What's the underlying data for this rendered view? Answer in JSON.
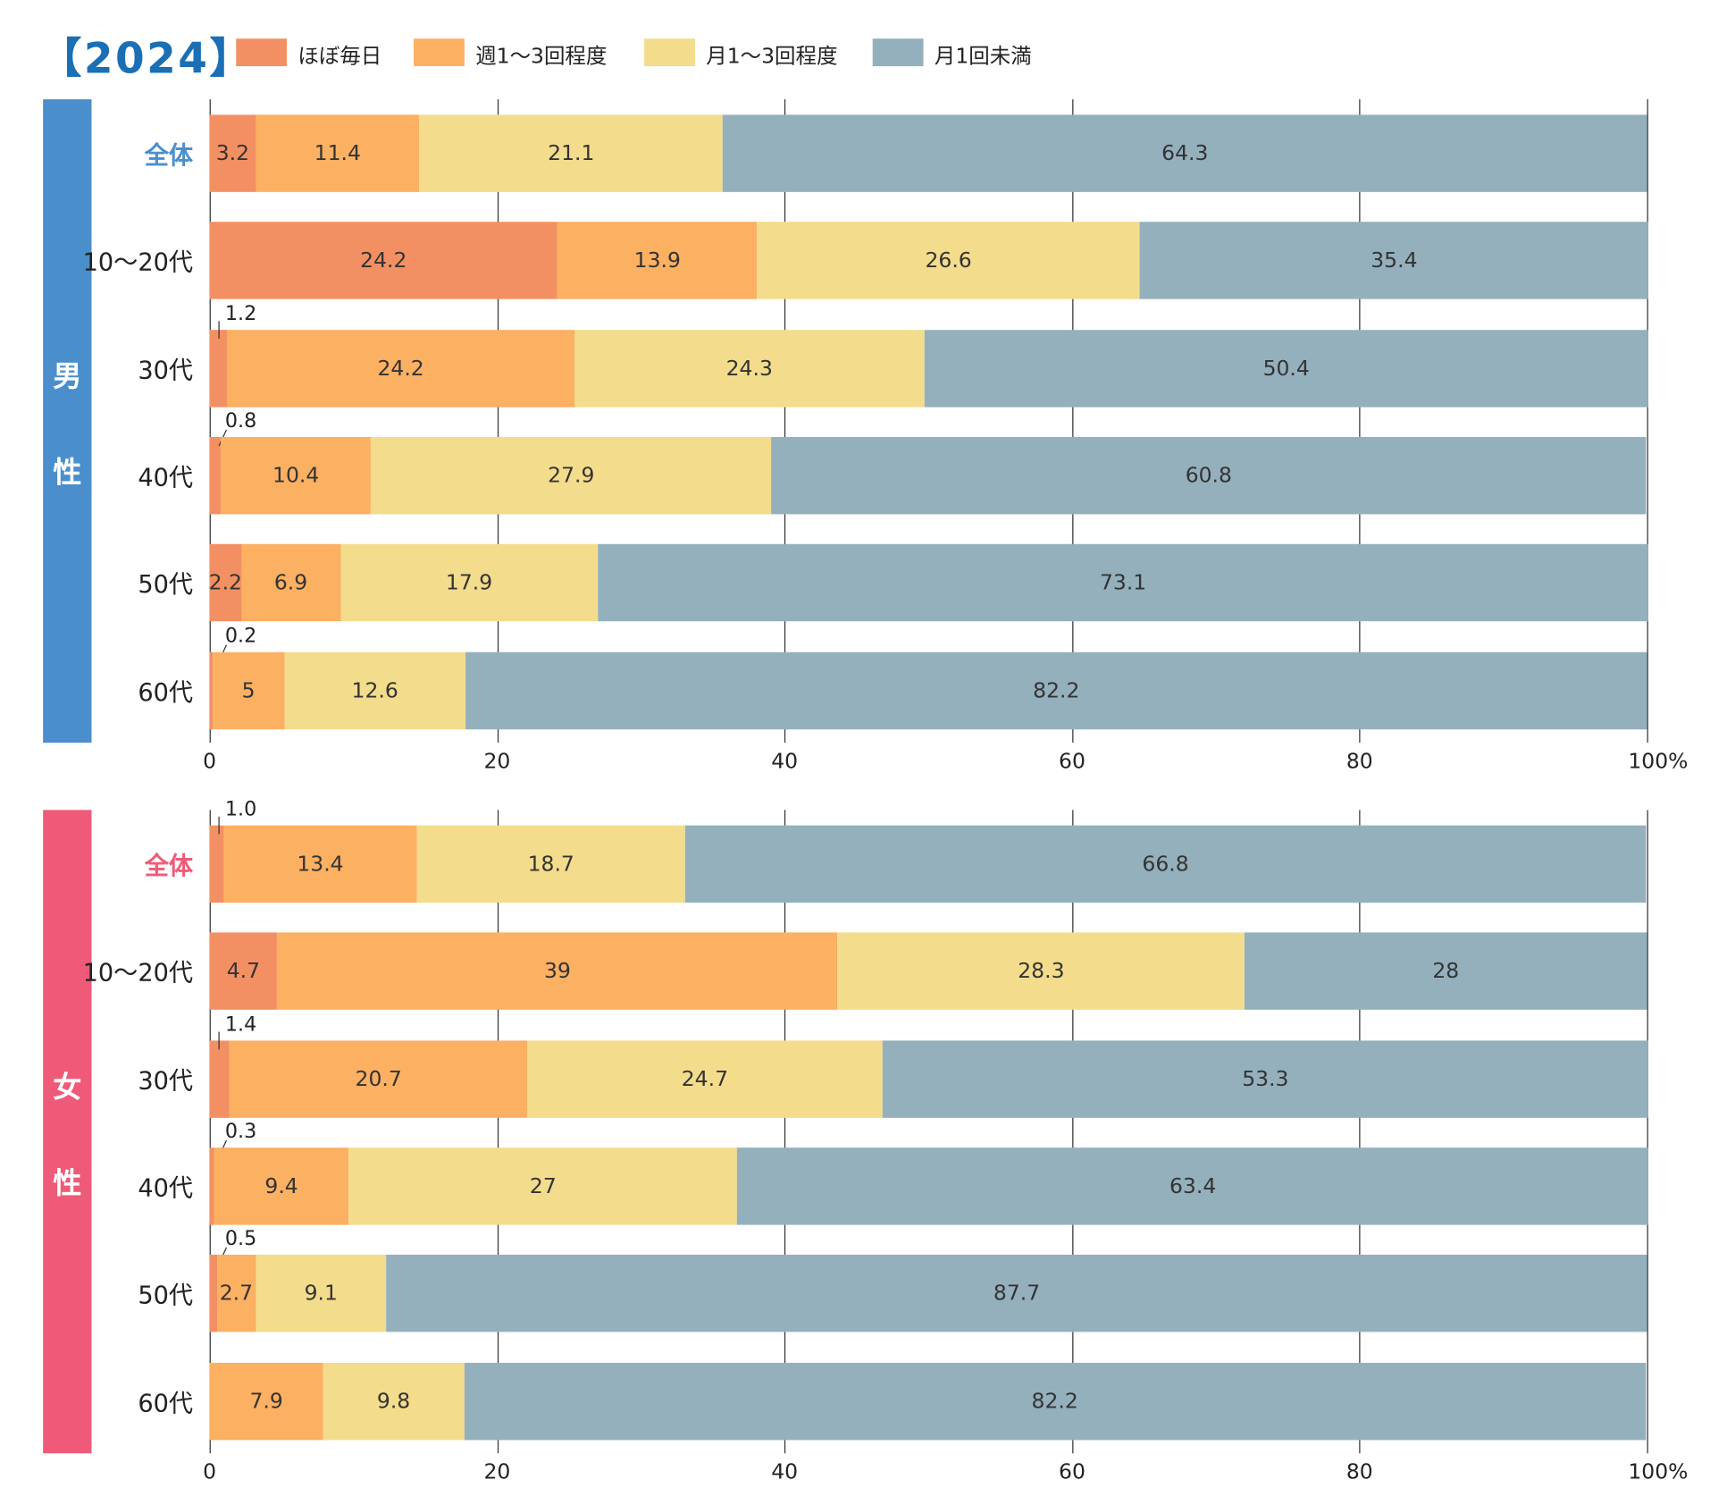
{
  "chart_data": {
    "type": "bar",
    "orientation": "horizontal-stacked-percent",
    "title": "【2024】",
    "legend": [
      "ほぼ毎日",
      "週1～3回程度",
      "月1～3回程度",
      "月1回未満"
    ],
    "colors": [
      "#f39063",
      "#fbb062",
      "#f3dc8c",
      "#94b0bd"
    ],
    "xlim": [
      0,
      100
    ],
    "ticks": [
      "0",
      "20",
      "40",
      "60",
      "80",
      "100%"
    ],
    "panels": [
      {
        "name": "男性",
        "chars": [
          "男",
          "性"
        ],
        "color": "#4a8fcc",
        "categories": [
          "全体",
          "10～20代",
          "30代",
          "40代",
          "50代",
          "60代"
        ],
        "values": [
          [
            3.2,
            11.4,
            21.1,
            64.3
          ],
          [
            24.2,
            13.9,
            26.6,
            35.4
          ],
          [
            1.2,
            24.2,
            24.3,
            50.4
          ],
          [
            0.8,
            10.4,
            27.9,
            60.8
          ],
          [
            2.2,
            6.9,
            17.9,
            73.1
          ],
          [
            0.2,
            5.0,
            12.6,
            82.2
          ]
        ]
      },
      {
        "name": "女性",
        "chars": [
          "女",
          "性"
        ],
        "color": "#ef5a78",
        "categories": [
          "全体",
          "10～20代",
          "30代",
          "40代",
          "50代",
          "60代"
        ],
        "values": [
          [
            1.0,
            13.4,
            18.7,
            66.8
          ],
          [
            4.7,
            39.0,
            28.3,
            28.0
          ],
          [
            1.4,
            20.7,
            24.7,
            53.3
          ],
          [
            0.3,
            9.4,
            27.0,
            63.4
          ],
          [
            0.5,
            2.7,
            9.1,
            87.7
          ],
          [
            0,
            7.9,
            9.8,
            82.2
          ]
        ]
      }
    ]
  }
}
